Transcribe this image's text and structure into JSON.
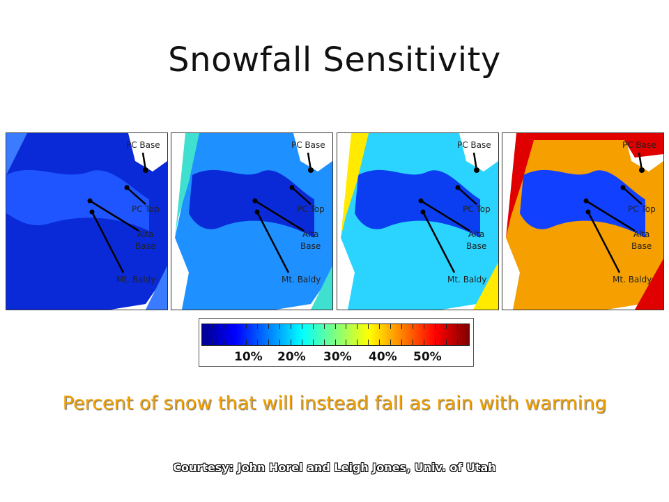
{
  "slide": {
    "title": "Snowfall Sensitivity",
    "caption": "Percent of snow that will instead fall as rain with warming",
    "credit": "Courtesy: John Horel and Leigh Jones, Univ. of Utah"
  },
  "panels": [
    {
      "base": "#0a2ad8",
      "mid": "#1f55ff",
      "edge": "#3a7bff"
    },
    {
      "base": "#0a2ad8",
      "mid": "#1e90ff",
      "edge": "#40e0d0"
    },
    {
      "base": "#0b3ef0",
      "mid": "#2ad4ff",
      "edge": "#ffea00"
    },
    {
      "base": "#1240ff",
      "mid": "#f5a000",
      "edge": "#e00000"
    }
  ],
  "labels": {
    "pc_base": "PC Base",
    "pc_top": "PC Top",
    "alta_base": "Alta\nBase",
    "mt_baldy": "Mt. Baldy"
  },
  "colorbar": {
    "tick_labels": [
      "10%",
      "20%",
      "30%",
      "40%",
      "50%"
    ],
    "colors": [
      "#00008f",
      "#0000ff",
      "#0080ff",
      "#00ffff",
      "#80ff80",
      "#ffff00",
      "#ff8000",
      "#ff0000",
      "#800000"
    ]
  }
}
